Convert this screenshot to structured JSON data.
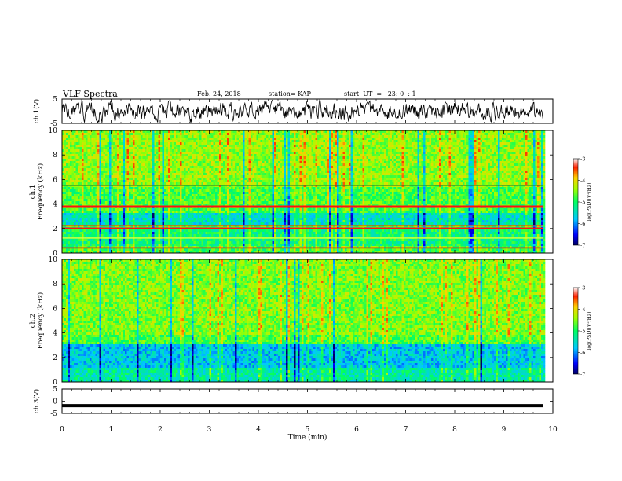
{
  "header": {
    "title": "VLF Spectra",
    "date": "Feb. 24, 2018",
    "station": "station= KAP",
    "start_ut": "start  UT  =   23: 0  : 1"
  },
  "chart_data": [
    {
      "type": "line",
      "panel": "ch1-waveform",
      "ylabel": "ch.1(V)",
      "ylim": [
        -5,
        5
      ],
      "y_tick_labels": [
        "5",
        "-5"
      ],
      "xlim": [
        0,
        10
      ],
      "data_extent_min": 9.8,
      "description_of_values": "noise-like signal spanning roughly -4 to 4 V",
      "line_color": "#000000"
    },
    {
      "type": "heatmap",
      "panel": "ch1-spectrogram",
      "ylabel": "ch.1\nFrequency (kHz)",
      "ylim": [
        0,
        10
      ],
      "y_tick_labels": [
        "0",
        "2",
        "4",
        "6",
        "8",
        "10"
      ],
      "xlim": [
        0,
        10
      ],
      "data_extent_min": 9.8,
      "narrowband_lines_khz": [
        3.8,
        2.2,
        2.0,
        1.2,
        0.4,
        5.5
      ],
      "colorbar": {
        "label": "log(PSD)(V²/Hz)",
        "range": [
          -7,
          -3
        ],
        "tick_labels": [
          "-3",
          "-4",
          "-5",
          "-6",
          "-7"
        ]
      }
    },
    {
      "type": "heatmap",
      "panel": "ch2-spectrogram",
      "ylabel": "ch.2\nFrequency (kHz)",
      "ylim": [
        0,
        10
      ],
      "y_tick_labels": [
        "0",
        "2",
        "4",
        "6",
        "8",
        "10"
      ],
      "xlim": [
        0,
        10
      ],
      "data_extent_min": 9.8,
      "low_band_khz": [
        0,
        3.2
      ],
      "colorbar": {
        "label": "log(PSD)(V²/Hz)",
        "range": [
          -7,
          -3
        ],
        "tick_labels": [
          "-3",
          "-4",
          "-5",
          "-6",
          "-7"
        ]
      }
    },
    {
      "type": "line",
      "panel": "ch3-waveform",
      "ylabel": "ch.3(V)",
      "ylim": [
        -5,
        5
      ],
      "y_tick_labels": [
        "5",
        "0",
        "-5"
      ],
      "xlim": [
        0,
        10
      ],
      "data_extent_min": 9.8,
      "constant_value": -1.8,
      "line_color": "#000000"
    }
  ],
  "x_axis": {
    "label": "Time (min)",
    "tick_labels": [
      "0",
      "1",
      "2",
      "3",
      "4",
      "5",
      "6",
      "7",
      "8",
      "9",
      "10"
    ]
  }
}
